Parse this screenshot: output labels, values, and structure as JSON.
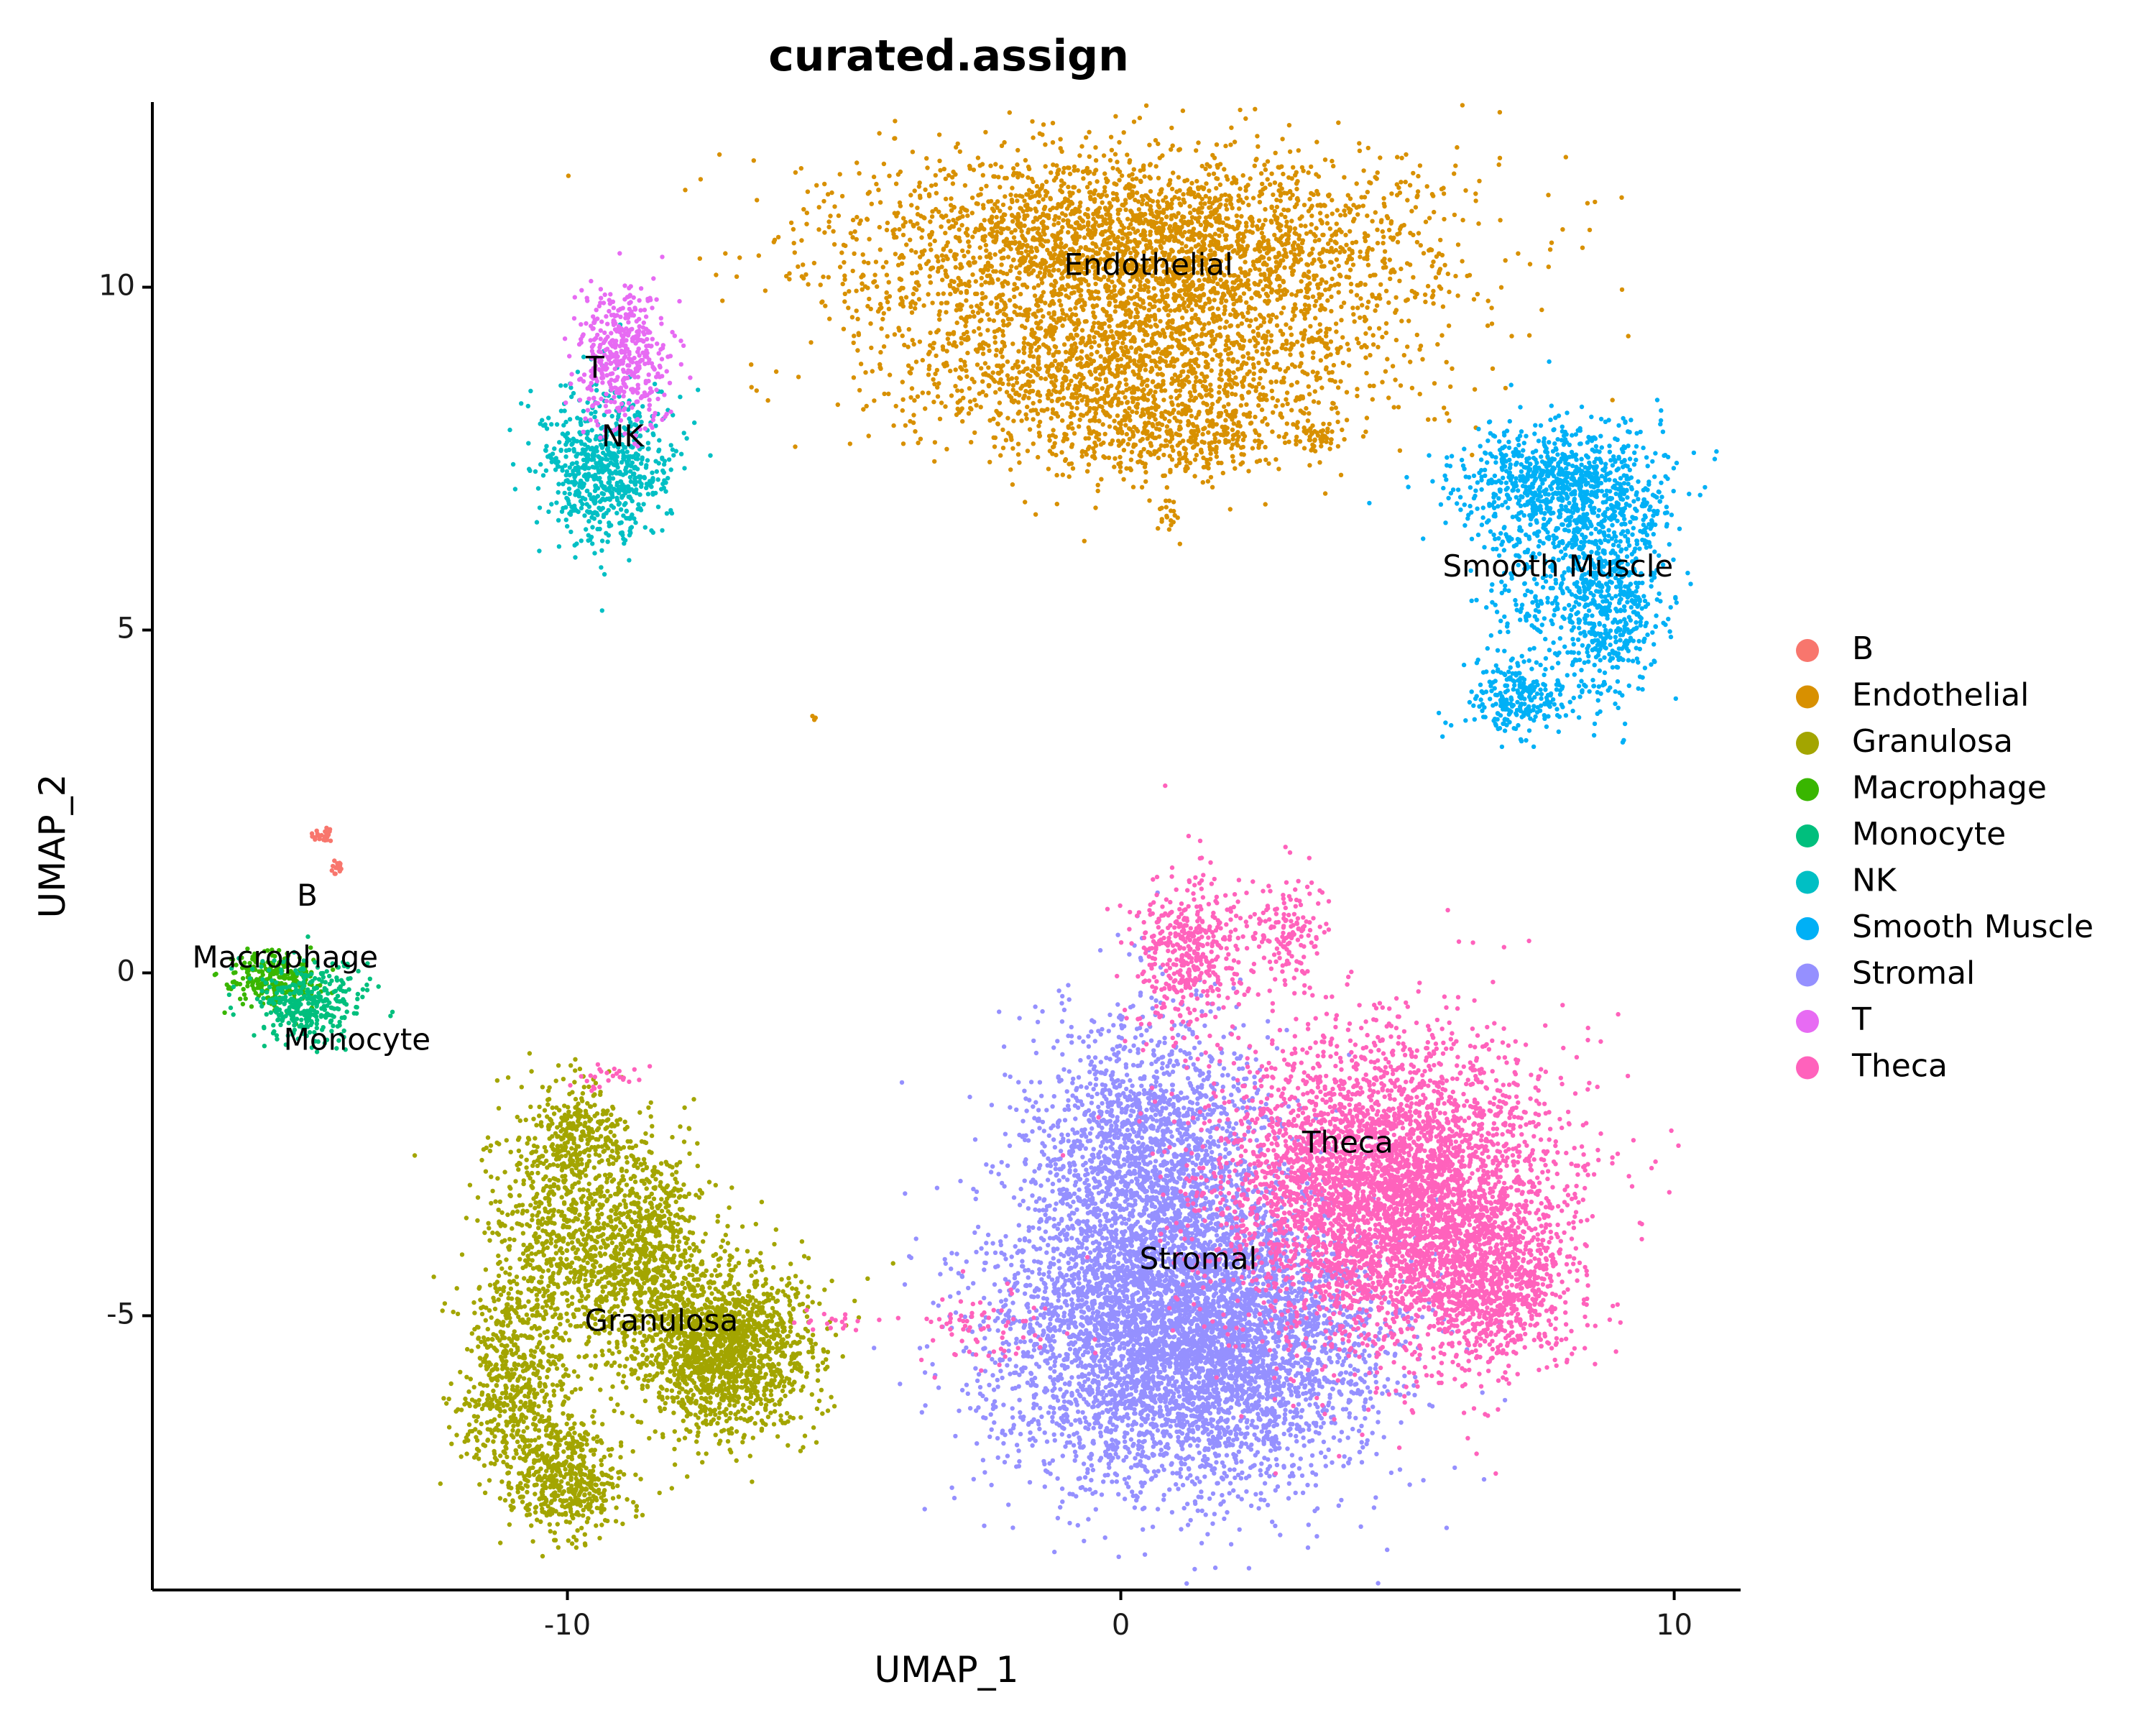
{
  "chart_data": {
    "type": "scatter",
    "title": "curated.assign",
    "xlabel": "UMAP_1",
    "ylabel": "UMAP_2",
    "xlim": [
      -17.5,
      11.2
    ],
    "ylim": [
      -9.0,
      12.7
    ],
    "x_ticks": [
      -10,
      0,
      10
    ],
    "x_tick_labels": [
      "-10",
      "0",
      "10"
    ],
    "y_ticks": [
      -5,
      0,
      5,
      10
    ],
    "y_tick_labels": [
      "-5",
      "0",
      "5",
      "10"
    ],
    "grid": false,
    "legend_position": "right",
    "series": [
      {
        "name": "B",
        "color": "#F8766D",
        "clusters": [
          {
            "cx": -14.4,
            "cy": 2.0,
            "sx": 0.1,
            "sy": 0.08,
            "n": 25
          },
          {
            "cx": -14.2,
            "cy": 1.5,
            "sx": 0.08,
            "sy": 0.08,
            "n": 15
          }
        ]
      },
      {
        "name": "Endothelial",
        "color": "#D89000",
        "clusters": [
          {
            "cx": 0.4,
            "cy": 10.6,
            "sx": 2.6,
            "sy": 0.7,
            "n": 3000
          },
          {
            "cx": 0.2,
            "cy": 8.8,
            "sx": 2.2,
            "sy": 0.7,
            "n": 1800
          },
          {
            "cx": 1.0,
            "cy": 7.8,
            "sx": 0.9,
            "sy": 0.3,
            "n": 250
          },
          {
            "cx": 3.5,
            "cy": 7.8,
            "sx": 0.2,
            "sy": 0.1,
            "n": 40
          },
          {
            "cx": 0.9,
            "cy": 6.7,
            "sx": 0.12,
            "sy": 0.12,
            "n": 20
          },
          {
            "cx": -5.5,
            "cy": 3.7,
            "sx": 0.06,
            "sy": 0.06,
            "n": 3
          }
        ]
      },
      {
        "name": "Granulosa",
        "color": "#A3A500",
        "clusters": [
          {
            "cx": -7.2,
            "cy": -5.5,
            "sx": 0.8,
            "sy": 0.6,
            "n": 1600
          },
          {
            "cx": -8.7,
            "cy": -4.0,
            "sx": 0.6,
            "sy": 0.8,
            "n": 900
          },
          {
            "cx": -10.2,
            "cy": -3.8,
            "sx": 0.6,
            "sy": 1.0,
            "n": 700
          },
          {
            "cx": -11.0,
            "cy": -6.0,
            "sx": 0.5,
            "sy": 0.8,
            "n": 600
          },
          {
            "cx": -10.0,
            "cy": -7.4,
            "sx": 0.5,
            "sy": 0.4,
            "n": 500
          },
          {
            "cx": -9.8,
            "cy": -2.3,
            "sx": 0.35,
            "sy": 0.3,
            "n": 200
          }
        ]
      },
      {
        "name": "Macrophage",
        "color": "#39B600",
        "clusters": [
          {
            "cx": -15.3,
            "cy": -0.1,
            "sx": 0.4,
            "sy": 0.2,
            "n": 250
          }
        ]
      },
      {
        "name": "Monocyte",
        "color": "#00BF7D",
        "clusters": [
          {
            "cx": -14.7,
            "cy": -0.4,
            "sx": 0.5,
            "sy": 0.3,
            "n": 350
          }
        ]
      },
      {
        "name": "NK",
        "color": "#00BFC4",
        "clusters": [
          {
            "cx": -9.3,
            "cy": 7.4,
            "sx": 0.6,
            "sy": 0.55,
            "n": 700
          }
        ]
      },
      {
        "name": "Smooth Muscle",
        "color": "#00B0F6",
        "clusters": [
          {
            "cx": 8.0,
            "cy": 7.1,
            "sx": 0.9,
            "sy": 0.45,
            "n": 900
          },
          {
            "cx": 8.8,
            "cy": 5.6,
            "sx": 0.5,
            "sy": 0.8,
            "n": 700
          },
          {
            "cx": 7.2,
            "cy": 4.0,
            "sx": 0.5,
            "sy": 0.25,
            "n": 250
          },
          {
            "cx": 7.4,
            "cy": 5.6,
            "sx": 0.4,
            "sy": 0.6,
            "n": 150
          }
        ]
      },
      {
        "name": "Stromal",
        "color": "#9590FF",
        "clusters": [
          {
            "cx": 1.2,
            "cy": -5.3,
            "sx": 1.7,
            "sy": 1.1,
            "n": 5500
          },
          {
            "cx": 0.5,
            "cy": -2.8,
            "sx": 1.1,
            "sy": 1.1,
            "n": 2000
          }
        ]
      },
      {
        "name": "T",
        "color": "#E76BF3",
        "clusters": [
          {
            "cx": -9.0,
            "cy": 9.0,
            "sx": 0.4,
            "sy": 0.5,
            "n": 450
          }
        ]
      },
      {
        "name": "Theca",
        "color": "#FF62BC",
        "clusters": [
          {
            "cx": 4.8,
            "cy": -3.2,
            "sx": 1.5,
            "sy": 1.1,
            "n": 4500
          },
          {
            "cx": 6.8,
            "cy": -4.6,
            "sx": 0.7,
            "sy": 0.6,
            "n": 800
          },
          {
            "cx": 1.2,
            "cy": 0.3,
            "sx": 0.5,
            "sy": 0.6,
            "n": 450
          },
          {
            "cx": 3.0,
            "cy": 0.6,
            "sx": 0.35,
            "sy": 0.4,
            "n": 150
          },
          {
            "cx": -2.3,
            "cy": -5.2,
            "sx": 0.7,
            "sy": 0.3,
            "n": 70
          },
          {
            "cx": -9.3,
            "cy": -1.5,
            "sx": 0.3,
            "sy": 0.1,
            "n": 25
          },
          {
            "cx": -5.0,
            "cy": -5.1,
            "sx": 0.6,
            "sy": 0.1,
            "n": 20
          }
        ]
      }
    ],
    "cluster_labels": [
      {
        "text": "Endothelial",
        "x": 0.5,
        "y": 10.3
      },
      {
        "text": "T",
        "x": -9.5,
        "y": 8.8
      },
      {
        "text": "NK",
        "x": -9.0,
        "y": 7.8
      },
      {
        "text": "Smooth Muscle",
        "x": 7.9,
        "y": 5.9
      },
      {
        "text": "B",
        "x": -14.7,
        "y": 1.1
      },
      {
        "text": "Macrophage",
        "x": -15.1,
        "y": 0.2
      },
      {
        "text": "Monocyte",
        "x": -13.8,
        "y": -1.0
      },
      {
        "text": "Theca",
        "x": 4.1,
        "y": -2.5
      },
      {
        "text": "Stromal",
        "x": 1.4,
        "y": -4.2
      },
      {
        "text": "Granulosa",
        "x": -8.3,
        "y": -5.1
      }
    ]
  }
}
